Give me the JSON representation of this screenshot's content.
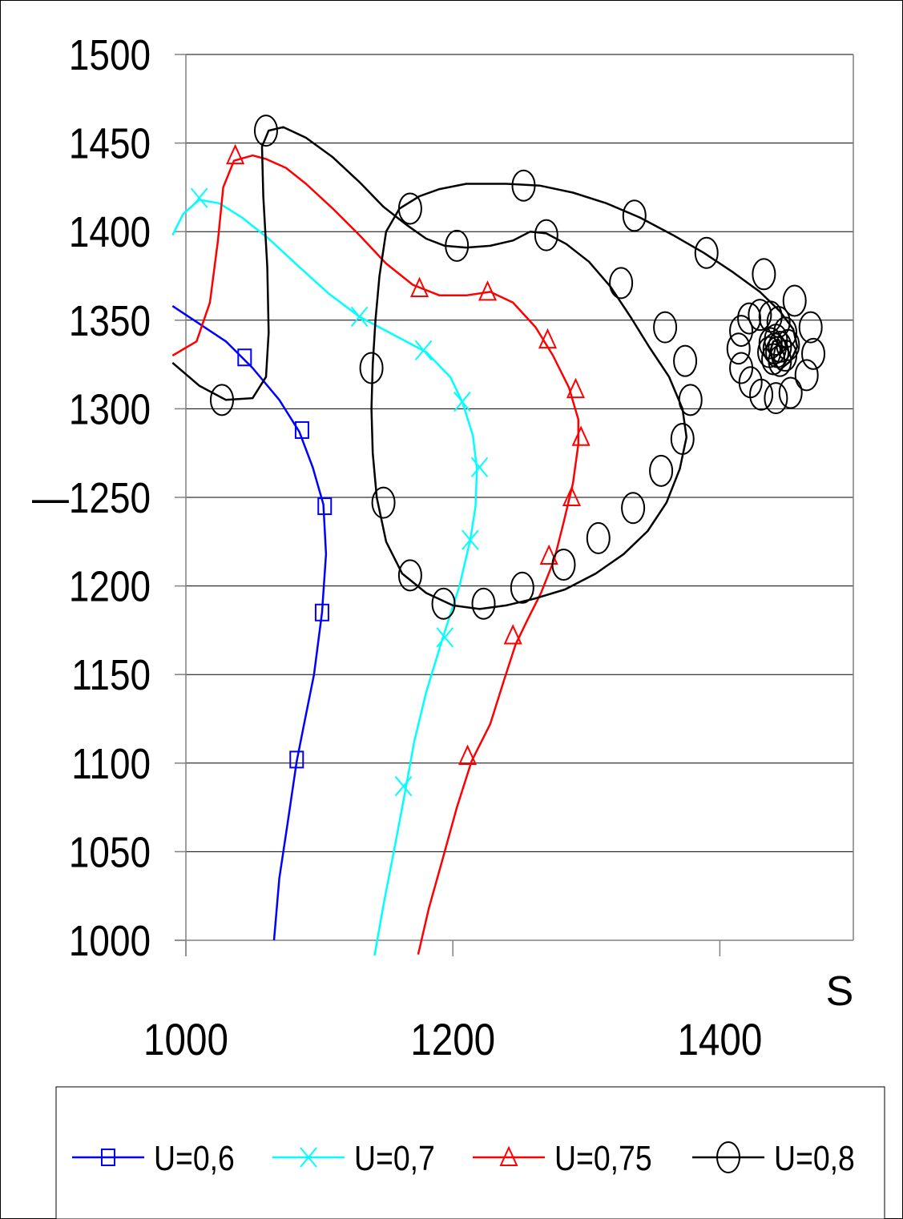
{
  "chart_data": {
    "type": "line",
    "title": "",
    "xlabel": "S",
    "ylabel": "",
    "xlim": [
      1000,
      1500
    ],
    "ylim": [
      1000,
      1500
    ],
    "y_ticks": [
      1000,
      1050,
      1100,
      1150,
      1200,
      1250,
      1300,
      1350,
      1400,
      1450,
      1500
    ],
    "y_tick_labels": [
      "1000",
      "1050",
      "1100",
      "1150",
      "1200",
      "—1250",
      "1300",
      "1350",
      "1400",
      "1450",
      "1500"
    ],
    "x_ticks": [
      1000,
      1200,
      1400
    ],
    "x_tick_labels": [
      "1000",
      "1200",
      "1400"
    ],
    "grid": "horizontal",
    "legend_position": "bottom",
    "series": [
      {
        "name": "U=0,6",
        "color": "#0000ff",
        "marker": "square",
        "points": [
          [
            990,
            1358
          ],
          [
            1010,
            1348
          ],
          [
            1030,
            1338
          ],
          [
            1050,
            1323
          ],
          [
            1070,
            1305
          ],
          [
            1085,
            1287
          ],
          [
            1095,
            1267
          ],
          [
            1103,
            1246
          ],
          [
            1105,
            1218
          ],
          [
            1102,
            1185
          ],
          [
            1096,
            1150
          ],
          [
            1088,
            1120
          ],
          [
            1083,
            1101
          ],
          [
            1076,
            1065
          ],
          [
            1070,
            1035
          ],
          [
            1066,
            1000
          ]
        ],
        "markers": [
          [
            1044,
            1329
          ],
          [
            1087,
            1288
          ],
          [
            1104,
            1245
          ],
          [
            1102,
            1185
          ],
          [
            1083,
            1102
          ]
        ]
      },
      {
        "name": "U=0,7",
        "color": "#00ffff",
        "marker": "x",
        "points": [
          [
            990,
            1398
          ],
          [
            998,
            1410
          ],
          [
            1010,
            1418
          ],
          [
            1025,
            1416
          ],
          [
            1042,
            1408
          ],
          [
            1062,
            1396
          ],
          [
            1085,
            1380
          ],
          [
            1107,
            1365
          ],
          [
            1130,
            1352
          ],
          [
            1155,
            1342
          ],
          [
            1180,
            1332
          ],
          [
            1198,
            1318
          ],
          [
            1207,
            1304
          ],
          [
            1215,
            1285
          ],
          [
            1218,
            1266
          ],
          [
            1217,
            1245
          ],
          [
            1213,
            1226
          ],
          [
            1205,
            1200
          ],
          [
            1193,
            1172
          ],
          [
            1180,
            1140
          ],
          [
            1171,
            1112
          ],
          [
            1165,
            1087
          ],
          [
            1157,
            1055
          ],
          [
            1148,
            1020
          ],
          [
            1141,
            990
          ]
        ],
        "markers": [
          [
            1010,
            1419
          ],
          [
            1130,
            1352
          ],
          [
            1178,
            1333
          ],
          [
            1207,
            1304
          ],
          [
            1220,
            1267
          ],
          [
            1213,
            1226
          ],
          [
            1194,
            1171
          ],
          [
            1163,
            1087
          ]
        ]
      },
      {
        "name": "U=0,75",
        "color": "#ff0000",
        "marker": "triangle",
        "points": [
          [
            990,
            1330
          ],
          [
            1008,
            1338
          ],
          [
            1018,
            1360
          ],
          [
            1024,
            1395
          ],
          [
            1028,
            1425
          ],
          [
            1036,
            1440
          ],
          [
            1050,
            1443
          ],
          [
            1060,
            1441
          ],
          [
            1075,
            1436
          ],
          [
            1090,
            1427
          ],
          [
            1110,
            1413
          ],
          [
            1130,
            1398
          ],
          [
            1150,
            1382
          ],
          [
            1170,
            1370
          ],
          [
            1190,
            1364
          ],
          [
            1210,
            1364
          ],
          [
            1228,
            1366
          ],
          [
            1245,
            1360
          ],
          [
            1262,
            1346
          ],
          [
            1275,
            1330
          ],
          [
            1287,
            1312
          ],
          [
            1294,
            1294
          ],
          [
            1294,
            1280
          ],
          [
            1290,
            1258
          ],
          [
            1283,
            1236
          ],
          [
            1276,
            1215
          ],
          [
            1266,
            1196
          ],
          [
            1256,
            1181
          ],
          [
            1247,
            1167
          ],
          [
            1238,
            1146
          ],
          [
            1228,
            1122
          ],
          [
            1214,
            1101
          ],
          [
            1203,
            1075
          ],
          [
            1192,
            1045
          ],
          [
            1182,
            1018
          ],
          [
            1174,
            992
          ]
        ],
        "markers": [
          [
            1037,
            1443
          ],
          [
            1175,
            1368
          ],
          [
            1226,
            1366
          ],
          [
            1271,
            1339
          ],
          [
            1292,
            1311
          ],
          [
            1296,
            1284
          ],
          [
            1289,
            1250
          ],
          [
            1272,
            1217
          ],
          [
            1245,
            1172
          ],
          [
            1211,
            1104
          ]
        ]
      },
      {
        "name": "U=0,8",
        "color": "#000000",
        "marker": "circle",
        "points": [
          [
            990,
            1326
          ],
          [
            1010,
            1313
          ],
          [
            1030,
            1305
          ],
          [
            1050,
            1306
          ],
          [
            1060,
            1318
          ],
          [
            1062,
            1343
          ],
          [
            1061,
            1380
          ],
          [
            1058,
            1420
          ],
          [
            1057,
            1448
          ],
          [
            1062,
            1457
          ],
          [
            1073,
            1459
          ],
          [
            1090,
            1453
          ],
          [
            1110,
            1442
          ],
          [
            1130,
            1428
          ],
          [
            1148,
            1414
          ],
          [
            1165,
            1404
          ],
          [
            1180,
            1396
          ],
          [
            1194,
            1392
          ],
          [
            1210,
            1391
          ],
          [
            1228,
            1392
          ],
          [
            1245,
            1395
          ],
          [
            1258,
            1400
          ],
          [
            1270,
            1399
          ],
          [
            1285,
            1393
          ],
          [
            1302,
            1383
          ],
          [
            1318,
            1369
          ],
          [
            1333,
            1352
          ],
          [
            1347,
            1335
          ],
          [
            1362,
            1318
          ],
          [
            1372,
            1300
          ],
          [
            1375,
            1284
          ],
          [
            1370,
            1266
          ],
          [
            1360,
            1247
          ],
          [
            1346,
            1231
          ],
          [
            1328,
            1218
          ],
          [
            1307,
            1207
          ],
          [
            1284,
            1198
          ],
          [
            1262,
            1193
          ],
          [
            1240,
            1189
          ],
          [
            1220,
            1187
          ],
          [
            1200,
            1189
          ],
          [
            1180,
            1196
          ],
          [
            1162,
            1207
          ],
          [
            1150,
            1225
          ],
          [
            1143,
            1250
          ],
          [
            1140,
            1275
          ],
          [
            1139,
            1300
          ],
          [
            1140,
            1325
          ],
          [
            1142,
            1350
          ],
          [
            1145,
            1375
          ],
          [
            1150,
            1400
          ],
          [
            1160,
            1413
          ],
          [
            1175,
            1420
          ],
          [
            1190,
            1424
          ],
          [
            1210,
            1427
          ],
          [
            1240,
            1427
          ],
          [
            1265,
            1426
          ],
          [
            1290,
            1422
          ],
          [
            1315,
            1416
          ],
          [
            1340,
            1408
          ],
          [
            1365,
            1398
          ],
          [
            1388,
            1388
          ],
          [
            1410,
            1377
          ],
          [
            1430,
            1366
          ],
          [
            1445,
            1355
          ],
          [
            1455,
            1345
          ],
          [
            1458,
            1335
          ],
          [
            1453,
            1327
          ],
          [
            1445,
            1322
          ],
          [
            1440,
            1326
          ],
          [
            1438,
            1333
          ],
          [
            1440,
            1338
          ],
          [
            1444,
            1339
          ],
          [
            1447,
            1335
          ],
          [
            1446,
            1331
          ]
        ],
        "markers": [
          [
            1027,
            1305
          ],
          [
            1060,
            1457
          ],
          [
            1168,
            1413
          ],
          [
            1203,
            1392
          ],
          [
            1253,
            1426
          ],
          [
            1270,
            1398
          ],
          [
            1326,
            1371
          ],
          [
            1336,
            1409
          ],
          [
            1359,
            1346
          ],
          [
            1374,
            1327
          ],
          [
            1378,
            1305
          ],
          [
            1372,
            1283
          ],
          [
            1356,
            1265
          ],
          [
            1335,
            1244
          ],
          [
            1309,
            1227
          ],
          [
            1283,
            1212
          ],
          [
            1252,
            1199
          ],
          [
            1223,
            1190
          ],
          [
            1193,
            1190
          ],
          [
            1168,
            1206
          ],
          [
            1148,
            1247
          ],
          [
            1139,
            1323
          ],
          [
            1390,
            1388
          ],
          [
            1433,
            1376
          ],
          [
            1456,
            1361
          ],
          [
            1468,
            1346
          ],
          [
            1470,
            1331
          ],
          [
            1465,
            1319
          ],
          [
            1453,
            1309
          ],
          [
            1442,
            1306
          ],
          [
            1431,
            1308
          ],
          [
            1423,
            1315
          ],
          [
            1416,
            1323
          ],
          [
            1414,
            1334
          ],
          [
            1416,
            1344
          ],
          [
            1422,
            1351
          ],
          [
            1430,
            1353
          ],
          [
            1438,
            1352
          ],
          [
            1444,
            1349
          ],
          [
            1449,
            1343
          ],
          [
            1451,
            1336
          ],
          [
            1449,
            1330
          ],
          [
            1445,
            1327
          ],
          [
            1440,
            1328
          ],
          [
            1437,
            1332
          ],
          [
            1438,
            1337
          ],
          [
            1442,
            1339
          ],
          [
            1445,
            1335
          ],
          [
            1443,
            1332
          ],
          [
            1441,
            1334
          ]
        ]
      }
    ]
  }
}
